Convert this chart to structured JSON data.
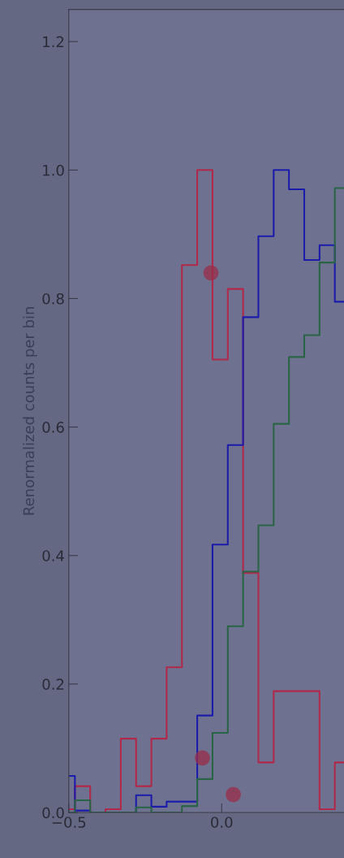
{
  "chart_data": {
    "type": "step",
    "ylabel": "Renormalized counts per bin",
    "x": [
      -0.5,
      -0.48,
      -0.43,
      -0.38,
      -0.33,
      -0.28,
      -0.23,
      -0.18,
      -0.13,
      -0.08,
      -0.03,
      0.02,
      0.07,
      0.12,
      0.17,
      0.22,
      0.27,
      0.32,
      0.37,
      0.4
    ],
    "series": [
      {
        "color": "#b0284a",
        "values": [
          0.005,
          0.041,
          0,
          0.005,
          0.115,
          0.041,
          0.115,
          0.226,
          0.852,
          1.0,
          0.705,
          0.815,
          0.373,
          0.078,
          0.189,
          0.189,
          0.189,
          0.005,
          0.078,
          0.078
        ]
      },
      {
        "color": "#1c1caa",
        "values": [
          0.057,
          0.003,
          0,
          0,
          0,
          0.027,
          0.009,
          0.017,
          0.017,
          0.151,
          0.417,
          0.572,
          0.771,
          0.897,
          1.0,
          0.97,
          0.86,
          0.883,
          0.795,
          0.795
        ]
      },
      {
        "color": "#2a6446",
        "values": [
          0,
          0.019,
          0,
          0,
          0,
          0.008,
          0,
          0,
          0.01,
          0.052,
          0.124,
          0.29,
          0.375,
          0.447,
          0.605,
          0.709,
          0.743,
          0.856,
          0.972,
          0.972
        ]
      },
      {
        "type": "scatter",
        "color": "#9a2c48",
        "x": [
          -0.035,
          -0.063,
          0.038
        ],
        "values": [
          0.84,
          0.085,
          0.028
        ],
        "marker": "circle"
      }
    ],
    "xlim": [
      -0.5,
      0.4
    ],
    "ylim": [
      0,
      1.25
    ],
    "xticks": [
      {
        "value": -0.5,
        "label": "−0.5"
      },
      {
        "value": 0,
        "label": "0.0"
      }
    ],
    "yticks": [
      {
        "value": 0,
        "label": "0.0"
      },
      0.2,
      0.4,
      0.6,
      0.8,
      {
        "value": 1,
        "label": "1.0"
      },
      1.2
    ],
    "grid": false
  }
}
